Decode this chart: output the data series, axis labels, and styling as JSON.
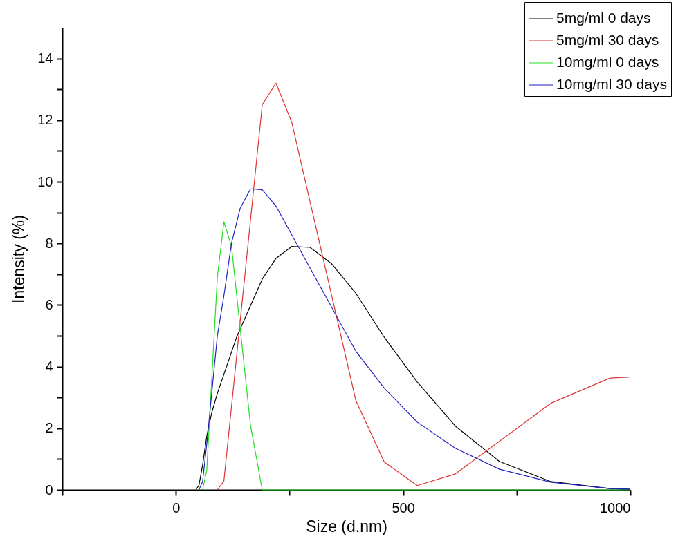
{
  "chart_data": {
    "type": "line",
    "xlabel": "Size (d.nm)",
    "ylabel": "Intensity (%)",
    "xlim": [
      -250,
      1000
    ],
    "ylim": [
      0,
      15
    ],
    "xticks": [
      {
        "value": -250,
        "label": null
      },
      0,
      {
        "value": 250,
        "label": null
      },
      500,
      {
        "value": 750,
        "label": null
      },
      1000
    ],
    "yticks": [
      0,
      {
        "value": 1,
        "label": null
      },
      2,
      {
        "value": 3,
        "label": null
      },
      4,
      {
        "value": 5,
        "label": null
      },
      6,
      {
        "value": 7,
        "label": null
      },
      8,
      {
        "value": 9,
        "label": null
      },
      10,
      {
        "value": 11,
        "label": null
      },
      12,
      {
        "value": 13,
        "label": null
      },
      14
    ],
    "grid": false,
    "legend": "top right",
    "marker": "none",
    "line_style": "solid",
    "series": [
      {
        "name": "5mg/ml 0 days",
        "color": "#000000",
        "x": [
          43.82,
          50.75,
          58.77,
          68.06,
          78.82,
          91.28,
          134,
          190.1,
          220.2,
          255,
          295.3,
          342,
          396.1,
          458.7,
          531.2,
          615.1,
          712.4,
          825,
          955.4,
          1000
        ],
        "values": [
          0,
          0.15,
          0.8,
          1.75,
          2.5,
          3.13,
          4.97,
          6.84,
          7.51,
          7.9,
          7.87,
          7.35,
          6.38,
          4.95,
          3.5,
          2.07,
          0.92,
          0.27,
          0.04,
          0.02
        ]
      },
      {
        "name": "5mg/ml 30 days",
        "color": "#e03030",
        "x": [
          91.28,
          105.7,
          190.1,
          220.2,
          255,
          396.1,
          458.7,
          531.2,
          615.1,
          825,
          955.4,
          1000
        ],
        "values": [
          0,
          0.29,
          12.5,
          13.2,
          11.93,
          2.9,
          0.9,
          0.14,
          0.52,
          2.81,
          3.63,
          3.66
        ]
      },
      {
        "name": "10mg/ml 0 days",
        "color": "#22dd22",
        "x": [
          58.77,
          68.06,
          91.28,
          105.7,
          122.4,
          164.2,
          190.1,
          1000
        ],
        "values": [
          0,
          0.65,
          6.9,
          8.7,
          7.9,
          2.1,
          0,
          0
        ]
      },
      {
        "name": "10mg/ml 30 days",
        "color": "#2020c0",
        "x": [
          50.75,
          58.77,
          68.06,
          91.28,
          105.7,
          122.4,
          141.8,
          164.2,
          190.1,
          220.2,
          396.1,
          458.7,
          531.2,
          615.1,
          712.4,
          825,
          955.4,
          1000
        ],
        "values": [
          0,
          0.27,
          1.5,
          5.0,
          6.3,
          8.0,
          9.15,
          9.77,
          9.74,
          9.21,
          4.5,
          3.3,
          2.2,
          1.35,
          0.67,
          0.25,
          0.04,
          0.02
        ]
      }
    ]
  }
}
